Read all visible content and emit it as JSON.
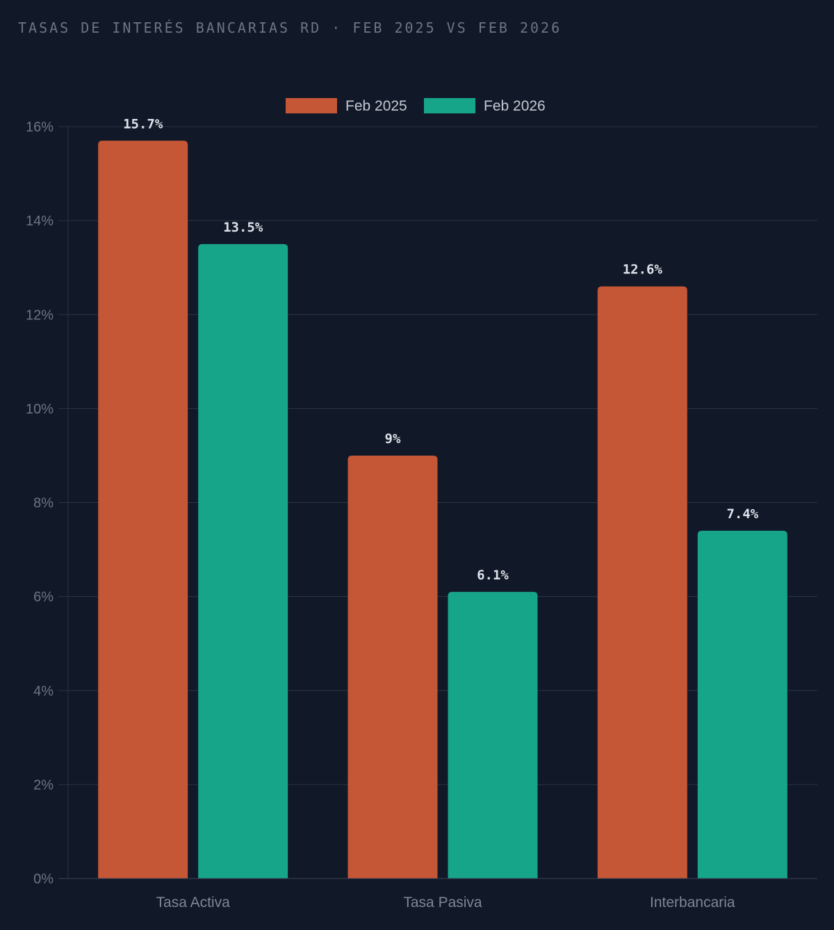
{
  "chart_data": {
    "type": "bar",
    "title": "TASAS DE INTERÉS BANCARIAS RD · FEB 2025 VS FEB 2026",
    "categories": [
      "Tasa Activa",
      "Tasa Pasiva",
      "Interbancaria"
    ],
    "series": [
      {
        "name": "Feb 2025",
        "color": "#c55636",
        "values": [
          15.7,
          9,
          12.6
        ],
        "labels": [
          "15.7%",
          "9%",
          "12.6%"
        ]
      },
      {
        "name": "Feb 2026",
        "color": "#17a589",
        "values": [
          13.5,
          6.1,
          7.4
        ],
        "labels": [
          "13.5%",
          "6.1%",
          "7.4%"
        ]
      }
    ],
    "ylim": [
      0,
      16
    ],
    "yticks": [
      0,
      2,
      4,
      6,
      8,
      10,
      12,
      14,
      16
    ],
    "ytick_labels": [
      "0%",
      "2%",
      "4%",
      "6%",
      "8%",
      "10%",
      "12%",
      "14%",
      "16%"
    ],
    "xlabel": "",
    "ylabel": "",
    "grid": true,
    "legend": "top-center"
  }
}
